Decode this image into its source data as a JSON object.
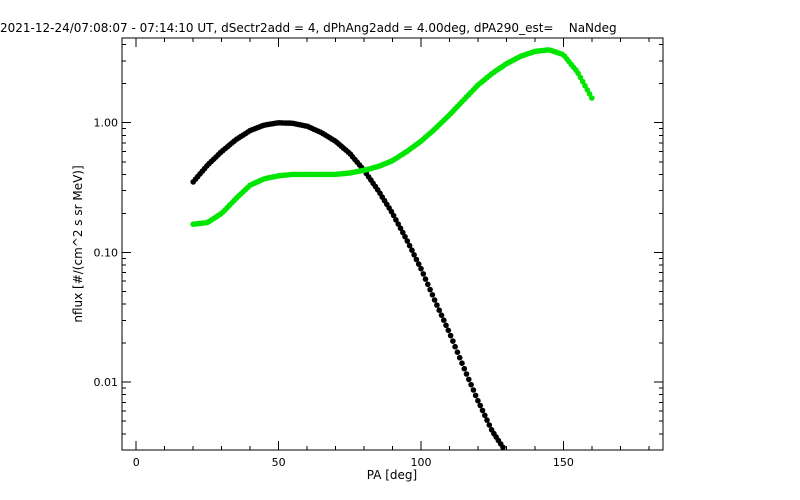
{
  "chart_data": {
    "type": "scatter",
    "title": "2021-12-24/07:08:07 - 07:14:10 UT, dSectr2add = 4, dPhAng2add = 4.00deg, dPA290_est=    NaNdeg",
    "xlabel": "PA [deg]",
    "ylabel": "nflux [#/(cm^2 s sr MeV)]",
    "xlim": [
      -5,
      185
    ],
    "ylim": [
      0.003,
      4.5
    ],
    "yscale": "log",
    "grid": false,
    "x_ticks": [
      {
        "value": 0,
        "label": "0"
      },
      {
        "value": 50,
        "label": "50"
      },
      {
        "value": 100,
        "label": "100"
      },
      {
        "value": 150,
        "label": "150"
      }
    ],
    "y_ticks": [
      {
        "value": 0.01,
        "label": "0.01"
      },
      {
        "value": 0.1,
        "label": "0.10"
      },
      {
        "value": 1,
        "label": "1.00"
      }
    ],
    "series": [
      {
        "color": "#000000",
        "x": [
          20,
          25,
          30,
          35,
          40,
          45,
          50,
          55,
          60,
          65,
          70,
          75,
          80,
          85,
          90,
          95,
          100,
          105,
          110,
          115,
          120,
          125,
          129
        ],
        "y": [
          0.35,
          0.47,
          0.6,
          0.74,
          0.87,
          0.96,
          1.0,
          0.99,
          0.94,
          0.84,
          0.72,
          0.58,
          0.43,
          0.3,
          0.2,
          0.125,
          0.075,
          0.042,
          0.024,
          0.013,
          0.0072,
          0.0042,
          0.0031
        ]
      },
      {
        "color": "#00e600",
        "x": [
          20,
          25,
          30,
          35,
          40,
          45,
          50,
          55,
          60,
          65,
          70,
          75,
          80,
          85,
          90,
          95,
          100,
          105,
          110,
          115,
          120,
          125,
          130,
          135,
          140,
          145,
          150,
          155,
          160
        ],
        "y": [
          0.165,
          0.17,
          0.2,
          0.26,
          0.33,
          0.37,
          0.39,
          0.4,
          0.4,
          0.4,
          0.4,
          0.41,
          0.43,
          0.46,
          0.51,
          0.6,
          0.72,
          0.9,
          1.15,
          1.5,
          1.95,
          2.4,
          2.85,
          3.25,
          3.55,
          3.65,
          3.35,
          2.45,
          1.55
        ]
      }
    ]
  }
}
